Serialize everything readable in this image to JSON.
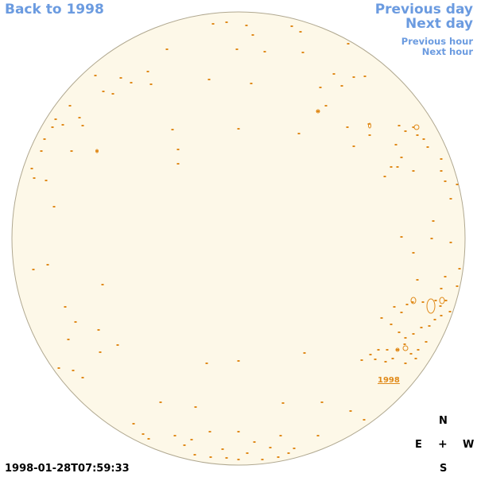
{
  "nav": {
    "back_label": "Back to 1998",
    "prev_day_label": "Previous day",
    "next_day_label": "Next day",
    "prev_hour_label": "Previous hour",
    "next_hour_label": "Next hour"
  },
  "timestamp": "1998-01-28T07:59:33",
  "region": {
    "label": "1998"
  },
  "compass": {
    "n": "N",
    "s": "S",
    "e": "E",
    "w": "W",
    "center": "+"
  },
  "colors": {
    "disk_fill": "#fdf8e8",
    "disk_stroke": "#b0a890",
    "contour": "#e08a1a",
    "nav_link": "#6b9be0"
  }
}
